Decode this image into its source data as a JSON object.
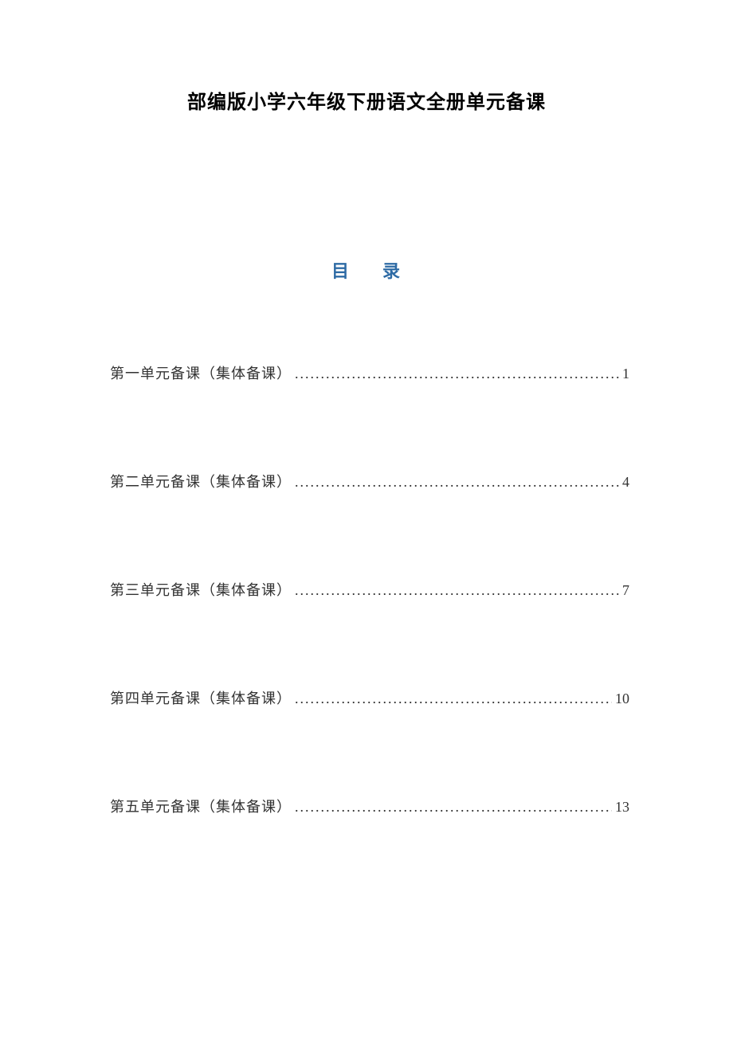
{
  "document": {
    "title": "部编版小学六年级下册语文全册单元备课",
    "toc_heading_char1": "目",
    "toc_heading_char2": "录",
    "heading_color": "#2e6ba5",
    "title_color": "#000000",
    "text_color": "#333333",
    "background_color": "#ffffff",
    "title_fontsize": 24,
    "heading_fontsize": 22,
    "entry_fontsize": 18
  },
  "toc": {
    "entries": [
      {
        "label": "第一单元备课（集体备课）",
        "page": "1"
      },
      {
        "label": "第二单元备课（集体备课）",
        "page": "4"
      },
      {
        "label": "第三单元备课（集体备课）",
        "page": "7"
      },
      {
        "label": "第四单元备课（集体备课）",
        "page": "10"
      },
      {
        "label": "第五单元备课（集体备课）",
        "page": "13"
      }
    ]
  }
}
